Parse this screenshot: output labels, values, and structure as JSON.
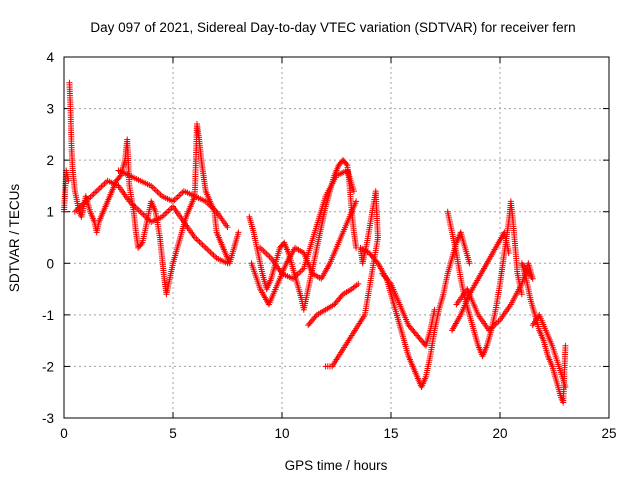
{
  "chart_data": {
    "type": "scatter",
    "title": "Day 097 of 2021, Sidereal Day-to-day VTEC variation (SDTVAR) for receiver fern",
    "xlabel": "GPS time / hours",
    "ylabel": "SDTVAR / TECUs",
    "xlim": [
      0,
      25
    ],
    "ylim": [
      -3,
      4
    ],
    "xticks": [
      0,
      5,
      10,
      15,
      20,
      25
    ],
    "yticks": [
      -3,
      -2,
      -1,
      0,
      1,
      2,
      3,
      4
    ],
    "grid": true,
    "marker": "+",
    "color": "#ff0000",
    "series": [
      {
        "name": "SDTVAR",
        "points": [
          [
            0.0,
            1.0
          ],
          [
            0.1,
            1.8
          ],
          [
            0.2,
            1.6
          ],
          [
            0.25,
            3.5
          ],
          [
            0.3,
            3.0
          ],
          [
            0.35,
            2.2
          ],
          [
            0.4,
            1.8
          ],
          [
            0.5,
            1.4
          ],
          [
            0.6,
            1.2
          ],
          [
            0.7,
            1.0
          ],
          [
            0.8,
            0.9
          ],
          [
            0.9,
            1.1
          ],
          [
            1.0,
            1.3
          ],
          [
            1.2,
            1.0
          ],
          [
            1.4,
            0.8
          ],
          [
            1.5,
            0.6
          ],
          [
            1.6,
            0.8
          ],
          [
            1.8,
            1.0
          ],
          [
            2.0,
            1.2
          ],
          [
            2.2,
            1.4
          ],
          [
            2.4,
            1.6
          ],
          [
            2.6,
            1.7
          ],
          [
            2.8,
            2.0
          ],
          [
            2.9,
            2.4
          ],
          [
            3.0,
            1.5
          ],
          [
            3.2,
            1.0
          ],
          [
            3.3,
            0.6
          ],
          [
            3.4,
            0.3
          ],
          [
            3.6,
            0.4
          ],
          [
            3.8,
            0.8
          ],
          [
            4.0,
            1.2
          ],
          [
            4.2,
            1.0
          ],
          [
            4.4,
            0.5
          ],
          [
            4.5,
            0.1
          ],
          [
            4.6,
            -0.3
          ],
          [
            4.7,
            -0.6
          ],
          [
            4.8,
            -0.4
          ],
          [
            5.0,
            0.0
          ],
          [
            5.2,
            0.3
          ],
          [
            5.4,
            0.6
          ],
          [
            5.6,
            0.9
          ],
          [
            5.8,
            1.1
          ],
          [
            6.0,
            1.3
          ],
          [
            6.1,
            2.7
          ],
          [
            6.2,
            2.4
          ],
          [
            6.3,
            2.0
          ],
          [
            6.4,
            1.7
          ],
          [
            6.5,
            1.4
          ],
          [
            6.7,
            1.2
          ],
          [
            6.9,
            1.0
          ],
          [
            7.0,
            0.6
          ],
          [
            7.2,
            0.4
          ],
          [
            7.4,
            0.2
          ],
          [
            7.6,
            0.0
          ],
          [
            7.8,
            0.3
          ],
          [
            8.0,
            0.6
          ],
          [
            0.5,
            1.0
          ],
          [
            1.0,
            1.2
          ],
          [
            1.5,
            1.4
          ],
          [
            2.0,
            1.6
          ],
          [
            2.5,
            1.5
          ],
          [
            3.0,
            1.2
          ],
          [
            3.5,
            1.0
          ],
          [
            4.0,
            0.8
          ],
          [
            4.5,
            0.9
          ],
          [
            5.0,
            1.1
          ],
          [
            5.5,
            0.8
          ],
          [
            6.0,
            0.5
          ],
          [
            6.5,
            0.3
          ],
          [
            7.0,
            0.1
          ],
          [
            7.5,
            0.0
          ],
          [
            2.5,
            1.8
          ],
          [
            3.0,
            1.7
          ],
          [
            3.5,
            1.6
          ],
          [
            4.0,
            1.5
          ],
          [
            4.5,
            1.3
          ],
          [
            5.0,
            1.2
          ],
          [
            5.5,
            1.4
          ],
          [
            6.0,
            1.3
          ],
          [
            6.5,
            1.2
          ],
          [
            7.0,
            1.0
          ],
          [
            7.5,
            0.7
          ],
          [
            8.5,
            0.9
          ],
          [
            8.7,
            0.6
          ],
          [
            8.9,
            0.2
          ],
          [
            9.1,
            -0.2
          ],
          [
            9.3,
            -0.5
          ],
          [
            9.5,
            -0.3
          ],
          [
            9.7,
            0.0
          ],
          [
            9.9,
            0.3
          ],
          [
            10.1,
            0.4
          ],
          [
            10.3,
            0.2
          ],
          [
            10.5,
            -0.1
          ],
          [
            10.7,
            -0.4
          ],
          [
            10.9,
            -0.7
          ],
          [
            11.0,
            -0.9
          ],
          [
            11.2,
            -0.5
          ],
          [
            11.4,
            -0.1
          ],
          [
            11.6,
            0.3
          ],
          [
            11.8,
            0.7
          ],
          [
            12.0,
            1.1
          ],
          [
            12.2,
            1.4
          ],
          [
            12.4,
            1.7
          ],
          [
            12.6,
            1.9
          ],
          [
            12.8,
            2.0
          ],
          [
            13.0,
            1.9
          ],
          [
            13.1,
            1.5
          ],
          [
            13.2,
            1.0
          ],
          [
            13.3,
            0.6
          ],
          [
            13.4,
            0.3
          ],
          [
            8.6,
            0.0
          ],
          [
            9.0,
            -0.5
          ],
          [
            9.4,
            -0.8
          ],
          [
            9.8,
            -0.4
          ],
          [
            10.2,
            0.0
          ],
          [
            10.6,
            0.3
          ],
          [
            11.0,
            0.2
          ],
          [
            11.4,
            -0.2
          ],
          [
            11.8,
            -0.3
          ],
          [
            12.2,
            0.0
          ],
          [
            12.6,
            0.4
          ],
          [
            13.0,
            0.8
          ],
          [
            13.4,
            1.2
          ],
          [
            9.0,
            0.3
          ],
          [
            9.5,
            0.1
          ],
          [
            10.0,
            -0.2
          ],
          [
            10.5,
            -0.3
          ],
          [
            11.0,
            -0.1
          ],
          [
            11.5,
            0.6
          ],
          [
            12.0,
            1.3
          ],
          [
            12.5,
            1.7
          ],
          [
            13.0,
            1.8
          ],
          [
            13.3,
            1.4
          ],
          [
            11.2,
            -1.2
          ],
          [
            11.6,
            -1.0
          ],
          [
            12.0,
            -0.9
          ],
          [
            12.4,
            -0.8
          ],
          [
            12.8,
            -0.6
          ],
          [
            13.2,
            -0.5
          ],
          [
            13.5,
            -0.4
          ],
          [
            12.0,
            -2.0
          ],
          [
            12.3,
            -2.0
          ],
          [
            12.6,
            -1.8
          ],
          [
            12.9,
            -1.6
          ],
          [
            13.2,
            -1.4
          ],
          [
            13.5,
            -1.2
          ],
          [
            13.8,
            -1.0
          ],
          [
            14.0,
            -0.5
          ],
          [
            14.2,
            0.0
          ],
          [
            14.4,
            0.5
          ],
          [
            14.3,
            1.4
          ],
          [
            14.1,
            0.9
          ],
          [
            13.9,
            0.4
          ],
          [
            13.7,
            0.0
          ],
          [
            13.6,
            0.3
          ],
          [
            14.0,
            0.2
          ],
          [
            14.4,
            0.0
          ],
          [
            14.8,
            -0.3
          ],
          [
            15.0,
            -0.6
          ],
          [
            15.2,
            -0.9
          ],
          [
            15.4,
            -1.2
          ],
          [
            15.6,
            -1.5
          ],
          [
            15.8,
            -1.8
          ],
          [
            16.0,
            -2.0
          ],
          [
            16.2,
            -2.2
          ],
          [
            16.4,
            -2.4
          ],
          [
            16.6,
            -2.2
          ],
          [
            16.8,
            -1.8
          ],
          [
            17.0,
            -1.3
          ],
          [
            17.2,
            -0.9
          ],
          [
            17.4,
            -0.6
          ],
          [
            17.6,
            -0.2
          ],
          [
            17.8,
            0.1
          ],
          [
            18.0,
            0.4
          ],
          [
            18.2,
            0.6
          ],
          [
            18.4,
            0.3
          ],
          [
            18.6,
            0.0
          ],
          [
            14.6,
            -0.2
          ],
          [
            15.0,
            -0.4
          ],
          [
            15.4,
            -0.8
          ],
          [
            15.8,
            -1.2
          ],
          [
            16.2,
            -1.4
          ],
          [
            16.6,
            -1.6
          ],
          [
            16.8,
            -1.3
          ],
          [
            17.0,
            -0.9
          ],
          [
            17.6,
            1.0
          ],
          [
            17.8,
            0.6
          ],
          [
            18.0,
            0.2
          ],
          [
            18.2,
            -0.3
          ],
          [
            18.4,
            -0.7
          ],
          [
            18.6,
            -1.0
          ],
          [
            18.8,
            -1.3
          ],
          [
            19.0,
            -1.6
          ],
          [
            19.2,
            -1.8
          ],
          [
            19.4,
            -1.6
          ],
          [
            19.6,
            -1.3
          ],
          [
            19.8,
            -0.9
          ],
          [
            20.0,
            -0.4
          ],
          [
            20.2,
            0.2
          ],
          [
            20.4,
            0.8
          ],
          [
            20.5,
            1.2
          ],
          [
            20.6,
            0.8
          ],
          [
            20.7,
            0.3
          ],
          [
            20.8,
            -0.2
          ],
          [
            21.0,
            -0.6
          ],
          [
            17.8,
            -1.3
          ],
          [
            18.2,
            -1.0
          ],
          [
            18.6,
            -0.6
          ],
          [
            19.0,
            -0.3
          ],
          [
            19.4,
            0.0
          ],
          [
            19.8,
            0.3
          ],
          [
            20.2,
            0.6
          ],
          [
            20.4,
            0.2
          ],
          [
            18.0,
            -0.8
          ],
          [
            18.5,
            -0.5
          ],
          [
            19.0,
            -1.0
          ],
          [
            19.5,
            -1.3
          ],
          [
            20.0,
            -1.1
          ],
          [
            20.5,
            -0.8
          ],
          [
            21.0,
            -0.4
          ],
          [
            21.3,
            0.0
          ],
          [
            21.5,
            -0.3
          ],
          [
            21.0,
            0.0
          ],
          [
            21.2,
            -0.3
          ],
          [
            21.4,
            -0.7
          ],
          [
            21.6,
            -1.0
          ],
          [
            21.8,
            -1.3
          ],
          [
            22.0,
            -1.5
          ],
          [
            22.2,
            -1.8
          ],
          [
            22.4,
            -2.0
          ],
          [
            22.6,
            -2.3
          ],
          [
            22.8,
            -2.6
          ],
          [
            22.9,
            -2.7
          ],
          [
            23.0,
            -1.6
          ],
          [
            21.5,
            -1.2
          ],
          [
            21.8,
            -1.0
          ],
          [
            22.1,
            -1.3
          ],
          [
            22.4,
            -1.6
          ],
          [
            22.7,
            -2.0
          ],
          [
            23.0,
            -2.4
          ]
        ]
      }
    ]
  }
}
